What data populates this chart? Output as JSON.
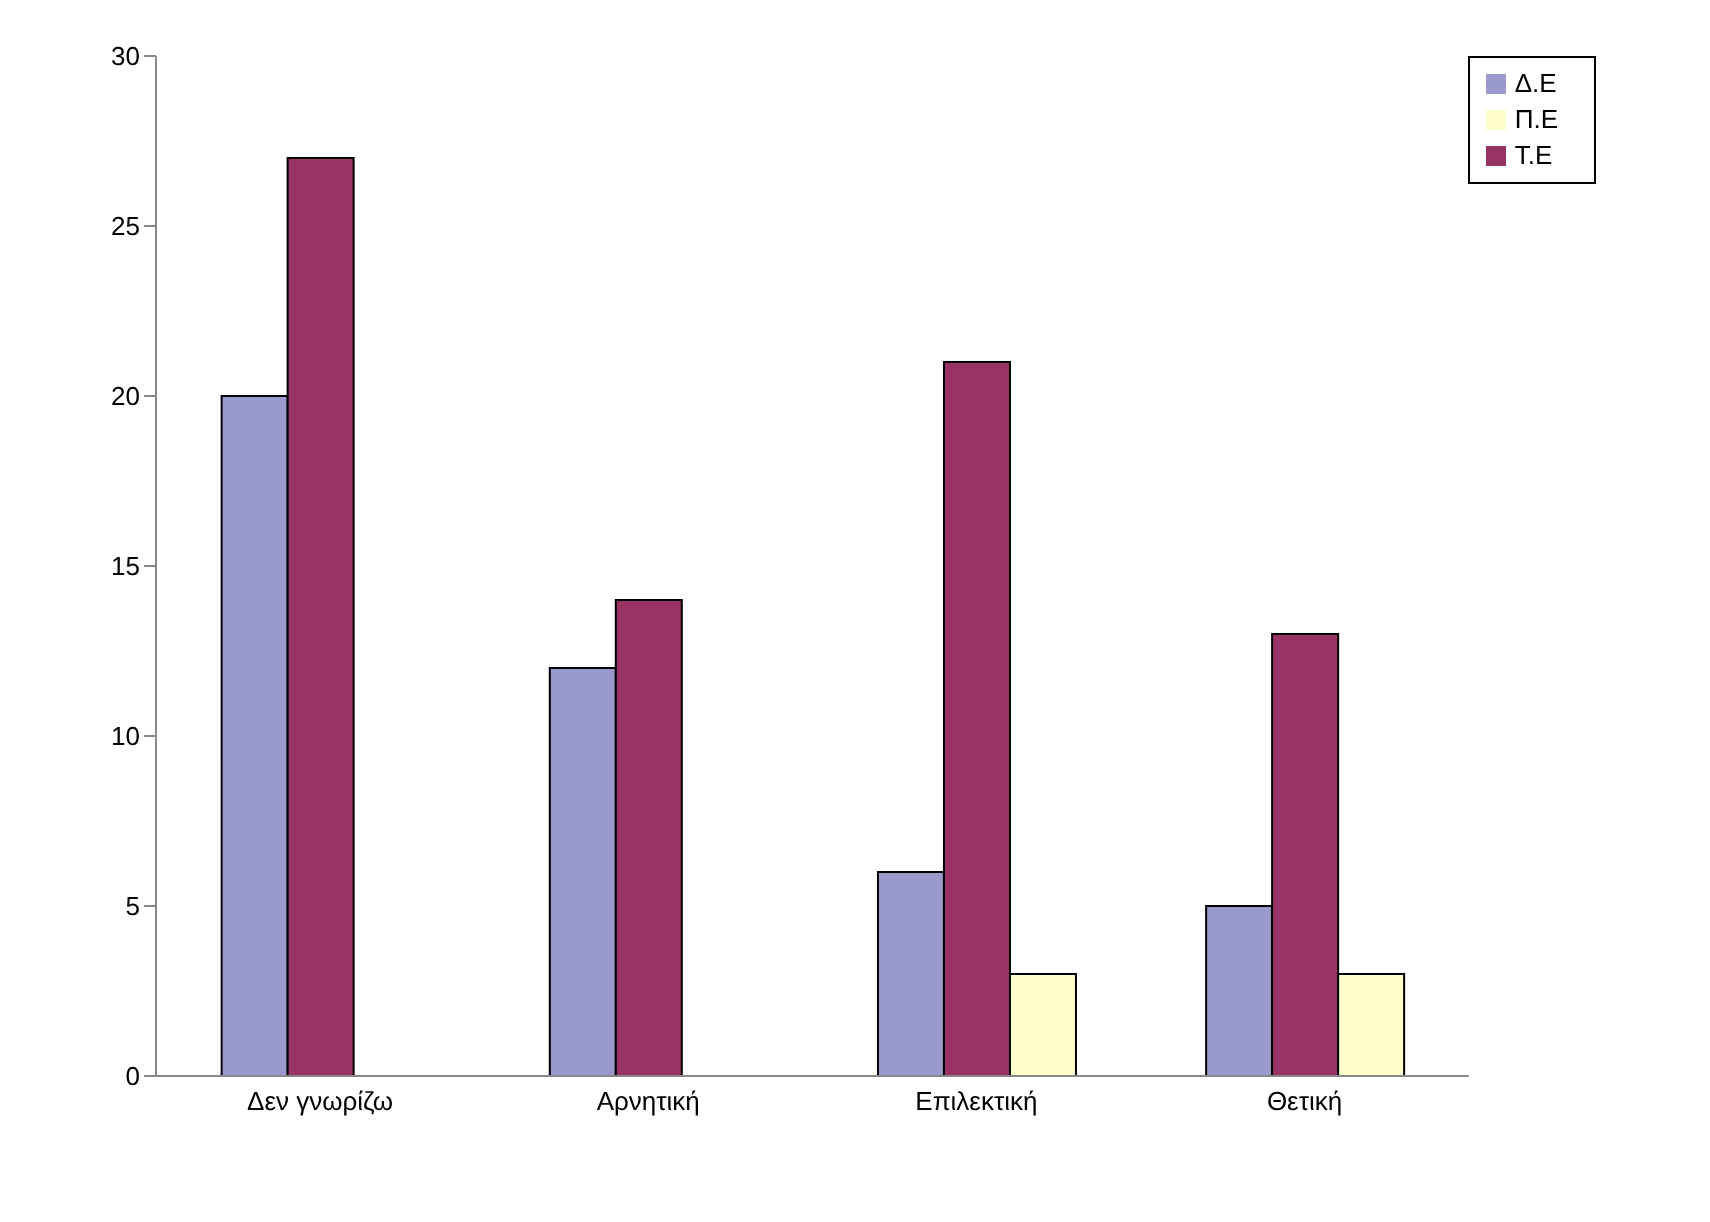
{
  "chart_data": {
    "type": "bar",
    "categories": [
      "Δεν γνωρίζω",
      "Αρνητική",
      "Επιλεκτική",
      "Θετική"
    ],
    "series": [
      {
        "name": "Δ.Ε",
        "color": "#9999cc",
        "values": [
          20,
          12,
          6,
          5
        ]
      },
      {
        "name": "Τ.Ε",
        "color": "#993366",
        "values": [
          27,
          14,
          21,
          13
        ]
      },
      {
        "name": "Π.Ε",
        "color": "#ffffcc",
        "values": [
          null,
          null,
          3,
          3
        ]
      }
    ],
    "ylim": [
      0,
      30
    ],
    "yticks": [
      0,
      5,
      10,
      15,
      20,
      25,
      30
    ],
    "grid": false,
    "legend": "top right"
  }
}
